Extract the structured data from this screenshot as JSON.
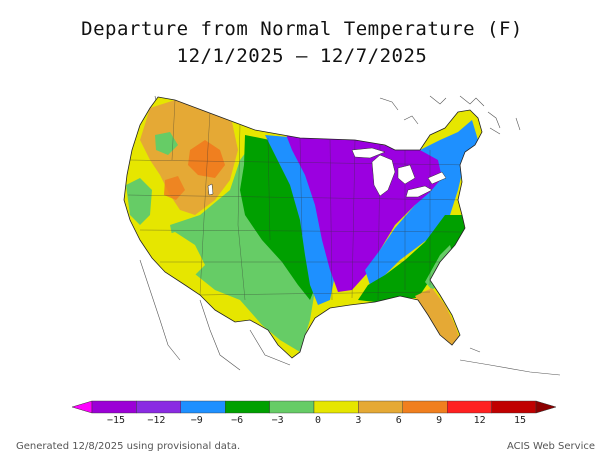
{
  "title": {
    "line1": "Departure from Normal Temperature (F)",
    "line2": "12/1/2025 – 12/7/2025"
  },
  "legend": {
    "ticks": [
      "−15",
      "−12",
      "−9",
      "−6",
      "−3",
      "0",
      "3",
      "6",
      "9",
      "12",
      "15"
    ],
    "colors": [
      "#ff00ff",
      "#9b00d6",
      "#8a2be2",
      "#1e90ff",
      "#00a000",
      "#66cc66",
      "#e6e600",
      "#e5a935",
      "#f07f1f",
      "#ff2020",
      "#c00000",
      "#8b0000"
    ],
    "left_arrow_color": "#ff00ff",
    "right_arrow_color": "#8b0000"
  },
  "map": {
    "region": "Contiguous United States",
    "colors": {
      "purple": "#9b00e0",
      "blue": "#1e90ff",
      "green": "#00a000",
      "lightgreen": "#66cc66",
      "yellow": "#e6e600",
      "orange": "#e5a935",
      "darkorange": "#f07f1f"
    }
  },
  "footer": {
    "left": "Generated 12/8/2025 using provisional data.",
    "right": "ACIS Web Service"
  }
}
